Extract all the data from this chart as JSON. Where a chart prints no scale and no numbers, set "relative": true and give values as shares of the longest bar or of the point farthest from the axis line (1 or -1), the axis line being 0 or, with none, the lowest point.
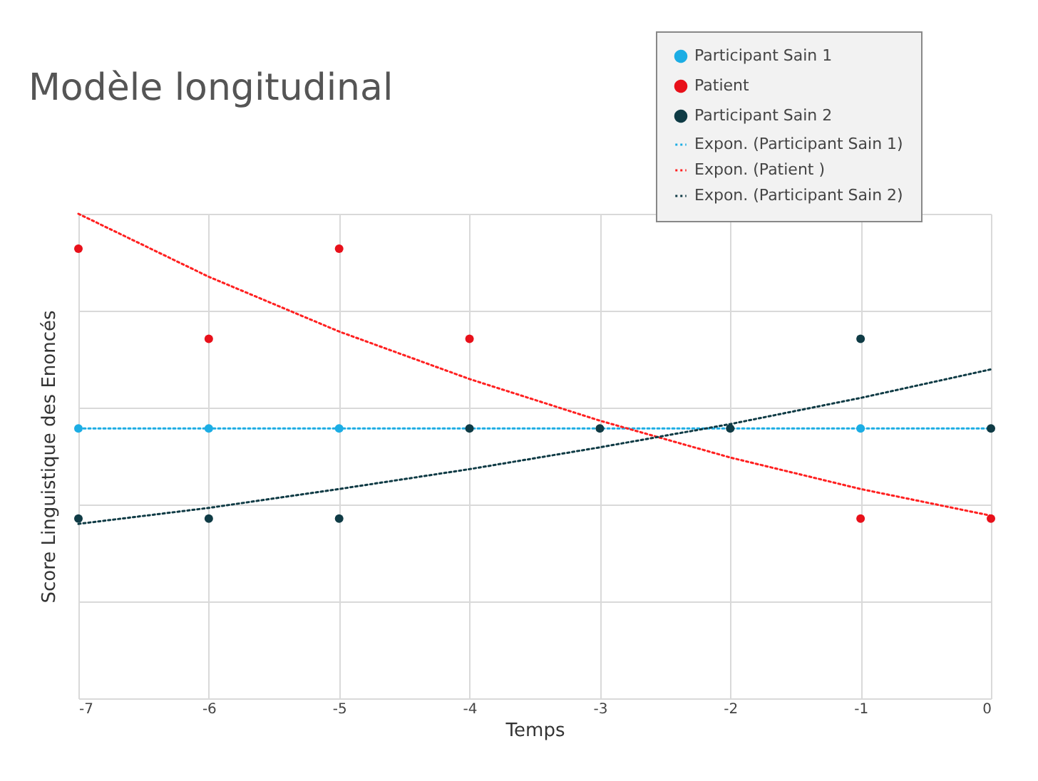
{
  "chart_data": {
    "type": "scatter",
    "title": "Modèle longitudinal",
    "xlabel": "Temps",
    "ylabel": "Score Linguistique des Enoncés",
    "relative": true,
    "xlim": [
      -7,
      0
    ],
    "xticks": [
      -7,
      -6,
      -5,
      -4,
      -3,
      -2,
      -1,
      0
    ],
    "grid": true,
    "legend": "top right",
    "series": [
      {
        "name": "Participant Sain 1",
        "type": "scatter",
        "marker": "circle",
        "color": "#1cade4",
        "x": [
          -7,
          -6,
          -5,
          -1
        ],
        "values": [
          0.557,
          0.557,
          0.557,
          0.557
        ]
      },
      {
        "name": "Patient",
        "type": "scatter",
        "marker": "circle",
        "color": "#e8101a",
        "x": [
          -7,
          -6,
          -5,
          -4,
          -1,
          0
        ],
        "values": [
          0.928,
          0.742,
          0.928,
          0.742,
          0.371,
          0.371
        ]
      },
      {
        "name": "Participant Sain 2",
        "type": "scatter",
        "marker": "circle",
        "color": "#0f3b45",
        "x": [
          -7,
          -6,
          -5,
          -4,
          -3,
          -2,
          -1,
          0
        ],
        "values": [
          0.371,
          0.371,
          0.371,
          0.557,
          0.557,
          0.557,
          0.742,
          0.557
        ]
      },
      {
        "name": "Expon. (Participant Sain 1)",
        "type": "line",
        "line_style": "dotted",
        "color": "#1cade4",
        "x": [
          -7,
          0
        ],
        "values": [
          0.557,
          0.557
        ]
      },
      {
        "name": "Expon. (Patient )",
        "type": "line",
        "line_style": "dotted",
        "color": "#ff2020",
        "x": [
          -7,
          -6,
          -5,
          -4,
          -3,
          -2,
          -1,
          0
        ],
        "values": [
          1,
          0.87,
          0.757,
          0.659,
          0.573,
          0.497,
          0.432,
          0.377
        ]
      },
      {
        "name": "Expon. (Participant Sain 2)",
        "type": "line",
        "line_style": "dotted",
        "color": "#0f3b45",
        "x": [
          -7,
          -6,
          -5,
          -4,
          -3,
          -2,
          -1,
          0
        ],
        "values": [
          0.36,
          0.393,
          0.432,
          0.473,
          0.518,
          0.566,
          0.62,
          0.679
        ]
      }
    ]
  }
}
